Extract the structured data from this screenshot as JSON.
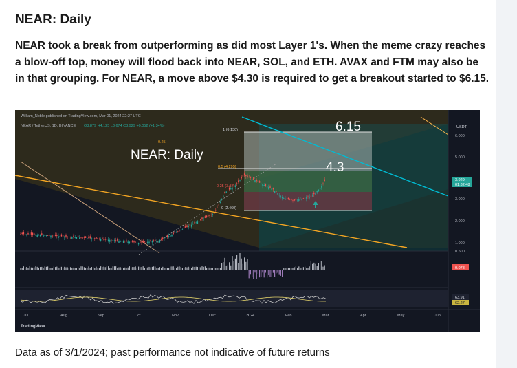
{
  "header": {
    "title": "NEAR: Daily"
  },
  "article": {
    "body": "NEAR took a break from outperforming as did most Layer 1's. When the meme crazy reaches a blow-off top, money will flood back into NEAR, SOL, and ETH. AVAX and FTM may also be in that grouping. For NEAR, a move above $4.30 is required to get a breakout started to $6.15."
  },
  "chart": {
    "published_by": "William_Noble published on TradingView.com, Mar 01, 2024 22:27 UTC",
    "symbol_info": "NEAR / TetherUS, 1D, BINANCE",
    "ohlc_text": "O3.879 H4.125 L3.674 C3.929 +0.052 (+1.34%)",
    "overlay_title": "NEAR: Daily",
    "target_high": "6.15",
    "target_mid": "4.3",
    "fib_labels": [
      "1 (6.130)",
      "0.5 (4.295)",
      "0.25 (3.37)",
      "0 (2.460)",
      "0.25"
    ],
    "currency": "USDT",
    "price_ticks": [
      "6.000",
      "5.000",
      "4.000",
      "3.000",
      "2.000",
      "1.000",
      "0.500"
    ],
    "current_price": "3.929",
    "countdown": "01:32:48",
    "macd_value": "0.078",
    "rsi_values": [
      "63.91",
      "62.27"
    ],
    "time_labels": [
      "Jul",
      "Aug",
      "Sep",
      "Oct",
      "Nov",
      "Dec",
      "2024",
      "Feb",
      "Mar",
      "Apr",
      "May",
      "Jun"
    ],
    "brand": "TradingView",
    "colors": {
      "bg": "#131722",
      "bull": "#26a69a",
      "bear": "#ef5350",
      "channel_cyan": "#00bcd4",
      "trend_orange": "#f5a623",
      "target_box": "#c8d3cc"
    }
  },
  "chart_data": {
    "type": "candlestick",
    "title": "NEAR: Daily",
    "symbol": "NEAR / TetherUS",
    "timeframe": "1D",
    "price_levels": [
      {
        "label": "1 (6.130)",
        "value": 6.13
      },
      {
        "label": "0.5 (4.295)",
        "value": 4.295
      },
      {
        "label": "0 (2.460)",
        "value": 2.46
      }
    ],
    "targets": [
      6.15,
      4.3
    ],
    "last_price": 3.929,
    "x_labels": [
      "Jul",
      "Aug",
      "Sep",
      "Oct",
      "Nov",
      "Dec",
      "2024",
      "Feb",
      "Mar",
      "Apr",
      "May",
      "Jun"
    ],
    "y_ticks": [
      6.0,
      5.0,
      4.0,
      3.0,
      2.0,
      1.0,
      0.5
    ]
  },
  "footer": {
    "note": "Data as of 3/1/2024; past performance not indicative of future returns"
  }
}
